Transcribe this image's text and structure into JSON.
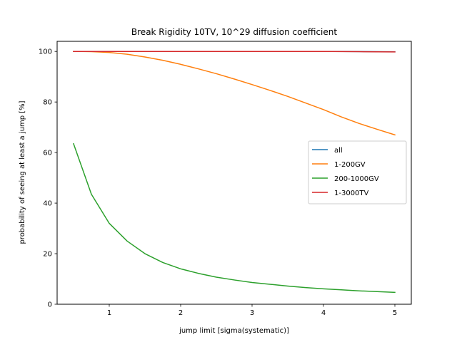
{
  "chart_data": {
    "type": "line",
    "title": "Break Rigidity 10TV, 10^29 diffusion coefficient",
    "xlabel": "jump limit [sigma(systematic)]",
    "ylabel": "probability of seeing at least a jump [%]",
    "xlim": [
      0.27,
      5.23
    ],
    "ylim": [
      0,
      104
    ],
    "xticks": [
      1,
      2,
      3,
      4,
      5
    ],
    "yticks": [
      0,
      20,
      40,
      60,
      80,
      100
    ],
    "grid": false,
    "legend_position": "center-right",
    "x": [
      0.5,
      0.75,
      1.0,
      1.25,
      1.5,
      1.75,
      2.0,
      2.25,
      2.5,
      2.75,
      3.0,
      3.25,
      3.5,
      3.75,
      4.0,
      4.25,
      4.5,
      4.75,
      5.0
    ],
    "series": [
      {
        "name": "all",
        "color": "#1f77b4",
        "values": [
          100,
          100,
          100,
          100,
          100,
          100,
          100,
          100,
          100,
          100,
          100,
          100,
          100,
          100,
          100,
          99.98,
          99.95,
          99.9,
          99.85
        ]
      },
      {
        "name": "1-200GV",
        "color": "#ff7f0e",
        "values": [
          100,
          99.9,
          99.6,
          98.9,
          97.8,
          96.5,
          94.9,
          93.1,
          91.2,
          89.1,
          86.9,
          84.6,
          82.2,
          79.6,
          77.0,
          74.1,
          71.5,
          69.2,
          67.0
        ]
      },
      {
        "name": "200-1000GV",
        "color": "#2ca02c",
        "values": [
          63.5,
          43.5,
          32.0,
          25.0,
          20.0,
          16.5,
          14.0,
          12.2,
          10.7,
          9.6,
          8.6,
          7.9,
          7.2,
          6.6,
          6.1,
          5.7,
          5.3,
          5.0,
          4.7
        ]
      },
      {
        "name": "1-3000TV",
        "color": "#d62728",
        "values": [
          100,
          100,
          100,
          100,
          100,
          100,
          100,
          100,
          100,
          100,
          100,
          100,
          100,
          100,
          99.98,
          99.95,
          99.9,
          99.85,
          99.8
        ]
      }
    ]
  }
}
